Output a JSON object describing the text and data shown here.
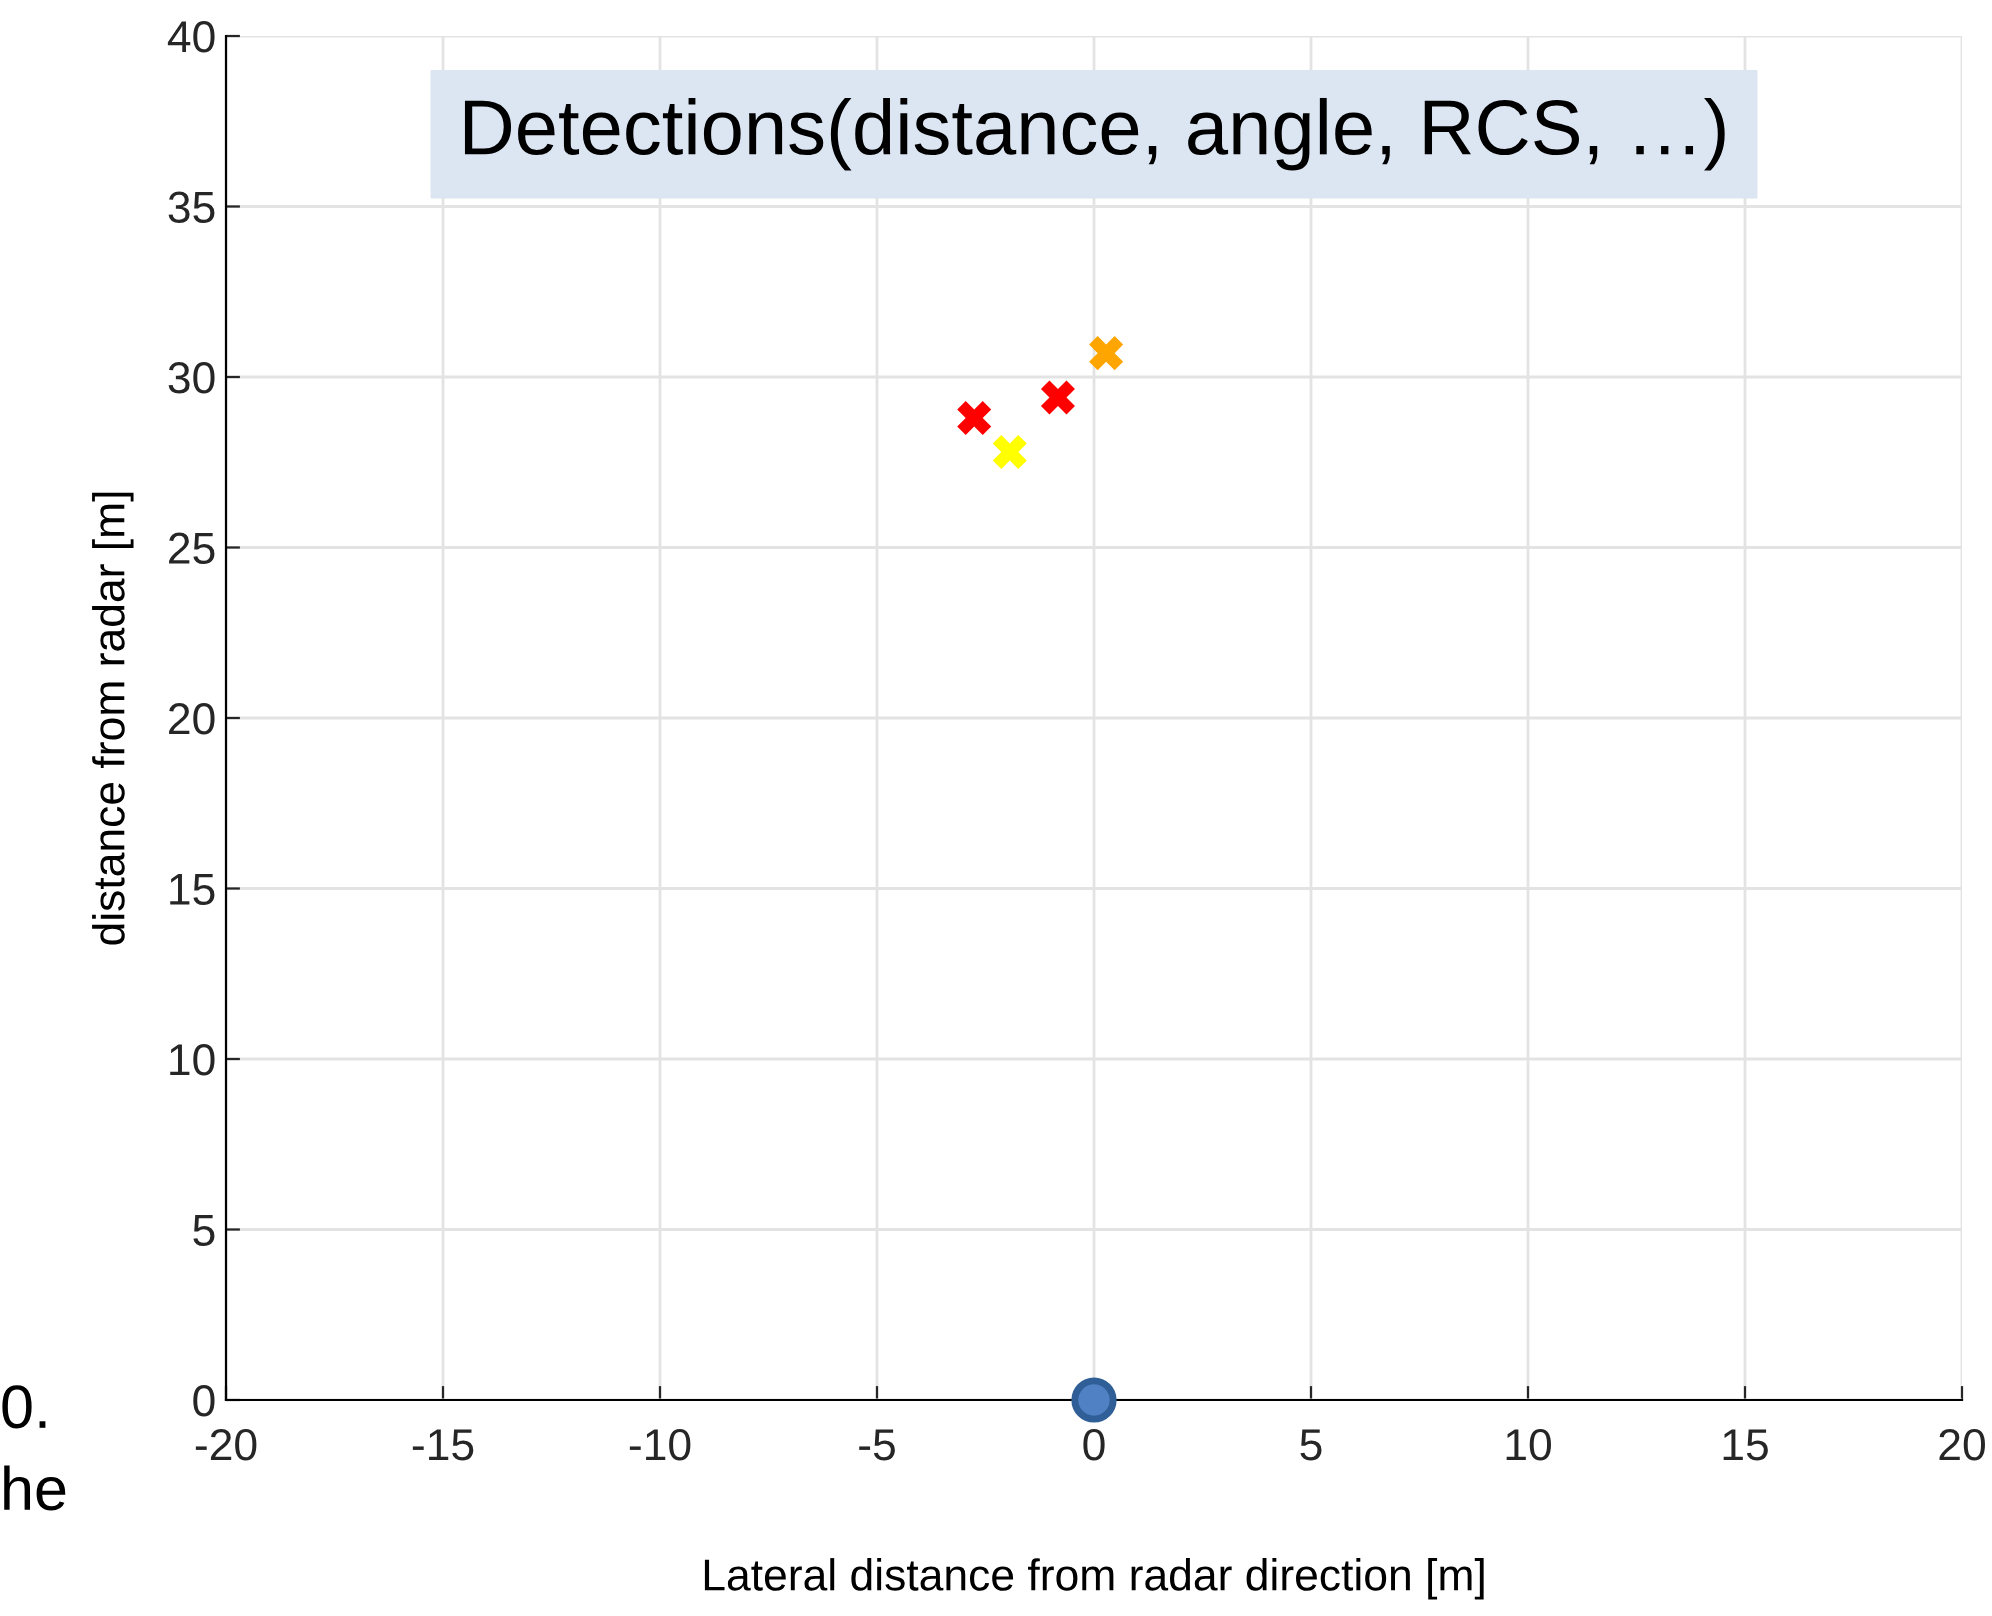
{
  "chart_data": {
    "type": "scatter",
    "title": "Detections(distance, angle, RCS, …)",
    "xlabel": "Lateral distance from radar direction [m]",
    "ylabel": "distance from radar [m]",
    "series": [
      {
        "x": [
          -2.76,
          -0.83,
          -1.94,
          0.28
        ],
        "values": [
          28.8,
          29.4,
          27.8,
          30.7
        ],
        "colors": [
          "#ff0000",
          "#ff0000",
          "#ffff00",
          "#ffa500"
        ],
        "marker": "cross"
      },
      {
        "x": [
          0
        ],
        "values": [
          0
        ],
        "color": "#4f81c4",
        "marker": "circle"
      }
    ],
    "xlim": [
      -20,
      20
    ],
    "xticks": [
      -20,
      -15,
      -10,
      -5,
      0,
      5,
      10,
      15,
      20
    ],
    "ylim": [
      0,
      40
    ],
    "yticks": [
      0,
      5,
      10,
      15,
      20,
      25,
      30,
      35,
      40
    ],
    "grid": true,
    "annotations": [
      "0.",
      "he"
    ]
  }
}
